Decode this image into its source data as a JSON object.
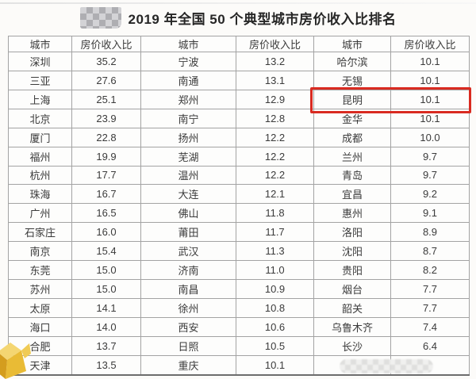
{
  "title": "2019 年全国 50 个典型城市房价收入比排名",
  "chart_data": {
    "type": "table",
    "title": "2019 年全国 50 个典型城市房价收入比排名",
    "columns": [
      "城市",
      "房价收入比",
      "城市",
      "房价收入比",
      "城市",
      "房价收入比"
    ],
    "rows": [
      [
        "深圳",
        "35.2",
        "宁波",
        "13.2",
        "哈尔滨",
        "10.1"
      ],
      [
        "三亚",
        "27.6",
        "南通",
        "13.1",
        "无锡",
        "10.1"
      ],
      [
        "上海",
        "25.1",
        "郑州",
        "12.9",
        "昆明",
        "10.1"
      ],
      [
        "北京",
        "23.9",
        "南宁",
        "12.8",
        "金华",
        "10.1"
      ],
      [
        "厦门",
        "22.8",
        "扬州",
        "12.2",
        "成都",
        "10.0"
      ],
      [
        "福州",
        "19.9",
        "芜湖",
        "12.2",
        "兰州",
        "9.7"
      ],
      [
        "杭州",
        "17.7",
        "温州",
        "12.2",
        "青岛",
        "9.7"
      ],
      [
        "珠海",
        "16.7",
        "大连",
        "12.1",
        "宜昌",
        "9.2"
      ],
      [
        "广州",
        "16.5",
        "佛山",
        "11.8",
        "惠州",
        "9.1"
      ],
      [
        "石家庄",
        "16.0",
        "莆田",
        "11.7",
        "洛阳",
        "8.9"
      ],
      [
        "南京",
        "15.4",
        "武汉",
        "11.3",
        "沈阳",
        "8.7"
      ],
      [
        "东莞",
        "15.0",
        "济南",
        "11.0",
        "贵阳",
        "8.2"
      ],
      [
        "苏州",
        "15.0",
        "南昌",
        "10.9",
        "烟台",
        "7.7"
      ],
      [
        "太原",
        "14.1",
        "徐州",
        "10.8",
        "韶关",
        "7.7"
      ],
      [
        "海口",
        "14.0",
        "西安",
        "10.6",
        "乌鲁木齐",
        "7.4"
      ],
      [
        "合肥",
        "13.7",
        "日照",
        "10.5",
        "长沙",
        "6.4"
      ],
      [
        "天津",
        "13.5",
        "重庆",
        "10.1",
        "",
        ""
      ]
    ]
  },
  "highlight": {
    "city": "昆明",
    "value": "10.1",
    "row_index": 2,
    "color": "#d92b21"
  },
  "icons": {
    "top_watermark": "pixelated-mosaic",
    "bottom_right_watermark": "pixelated-mosaic",
    "bottom_left_logo": "gold-box-logo"
  },
  "colors": {
    "accent_red": "#d92b21",
    "logo_gold": "#ecc23e",
    "table_border": "#a3a3a3",
    "text": "#3b3b3b"
  }
}
